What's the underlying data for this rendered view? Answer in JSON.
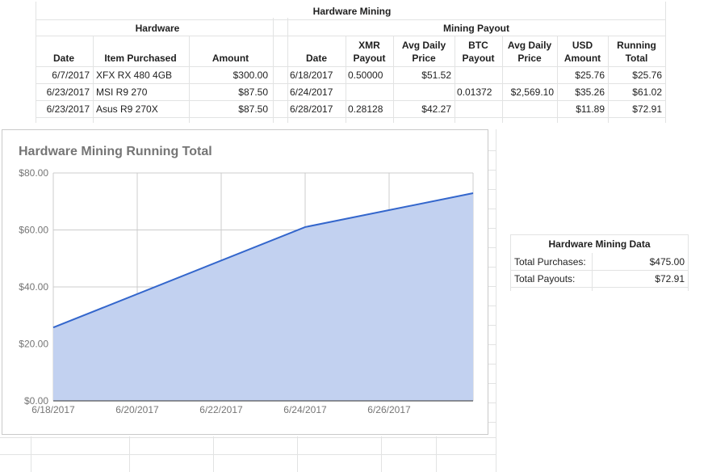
{
  "sheet": {
    "title": "Hardware Mining",
    "hardware": {
      "header": "Hardware",
      "columns": [
        "Date",
        "Item Purchased",
        "Amount"
      ],
      "rows": [
        [
          "6/7/2017",
          "XFX RX 480 4GB",
          "$300.00"
        ],
        [
          "6/23/2017",
          "MSI R9 270",
          "$87.50"
        ],
        [
          "6/23/2017",
          "Asus R9 270X",
          "$87.50"
        ]
      ]
    },
    "payout": {
      "header": "Mining Payout",
      "columns": [
        [
          "",
          "Date"
        ],
        [
          "XMR",
          "Payout"
        ],
        [
          "Avg Daily",
          "Price"
        ],
        [
          "BTC",
          "Payout"
        ],
        [
          "Avg Daily",
          "Price"
        ],
        [
          "USD",
          "Amount"
        ],
        [
          "Running",
          "Total"
        ]
      ],
      "rows": [
        [
          "6/18/2017",
          "0.50000",
          "$51.52",
          "",
          "",
          "$25.76",
          "$25.76"
        ],
        [
          "6/24/2017",
          "",
          "",
          "0.01372",
          "$2,569.10",
          "$35.26",
          "$61.02"
        ],
        [
          "6/28/2017",
          "0.28128",
          "$42.27",
          "",
          "",
          "$11.89",
          "$72.91"
        ]
      ]
    }
  },
  "summary": {
    "title": "Hardware Mining Data",
    "rows": [
      [
        "Total Purchases:",
        "$475.00"
      ],
      [
        "Total Payouts:",
        "$72.91"
      ]
    ]
  },
  "chart_data": {
    "type": "area",
    "title": "Hardware Mining Running Total",
    "x": [
      "6/18/2017",
      "6/24/2017",
      "6/28/2017"
    ],
    "y": [
      25.76,
      61.02,
      72.91
    ],
    "xticks": [
      "6/18/2017",
      "6/20/2017",
      "6/22/2017",
      "6/24/2017",
      "6/26/2017"
    ],
    "yticks": [
      "$0.00",
      "$20.00",
      "$40.00",
      "$60.00",
      "$80.00"
    ],
    "ylim": [
      0,
      80
    ],
    "xlim": [
      "6/18/2017",
      "6/28/2017"
    ],
    "grid": true,
    "legend": "none",
    "colors": {
      "line": "#3366cc",
      "fill": "#c2d1f0"
    }
  }
}
